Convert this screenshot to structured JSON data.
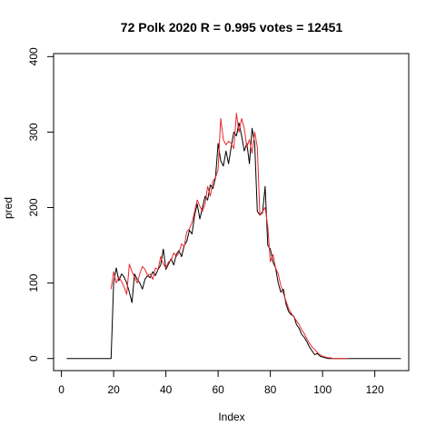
{
  "chart_data": {
    "type": "line",
    "title": "72 Polk 2020 R = 0.995 votes = 12451",
    "xlabel": "Index",
    "ylabel": "pred",
    "xlim": [
      -3,
      133
    ],
    "ylim": [
      -16,
      404
    ],
    "xticks": [
      0,
      20,
      40,
      60,
      80,
      100,
      120
    ],
    "yticks": [
      0,
      100,
      200,
      300,
      400
    ],
    "grid": false,
    "legend": "none",
    "series": [
      {
        "color": "#000000",
        "x": [
          2,
          3,
          4,
          5,
          6,
          7,
          8,
          9,
          10,
          11,
          12,
          13,
          14,
          15,
          16,
          17,
          18,
          19,
          20,
          21,
          22,
          23,
          24,
          25,
          26,
          27,
          28,
          29,
          30,
          31,
          32,
          33,
          34,
          35,
          36,
          37,
          38,
          39,
          40,
          41,
          42,
          43,
          44,
          45,
          46,
          47,
          48,
          49,
          50,
          51,
          52,
          53,
          54,
          55,
          56,
          57,
          58,
          59,
          60,
          61,
          62,
          63,
          64,
          65,
          66,
          67,
          68,
          69,
          70,
          71,
          72,
          73,
          74,
          75,
          76,
          77,
          78,
          79,
          80,
          81,
          82,
          83,
          84,
          85,
          86,
          87,
          88,
          89,
          90,
          91,
          92,
          93,
          94,
          95,
          96,
          97,
          98,
          99,
          100,
          101,
          102,
          103,
          104,
          105,
          106,
          107,
          108,
          109,
          110,
          111,
          112,
          113,
          114,
          115,
          116,
          117,
          118,
          119,
          120,
          121,
          122,
          123,
          124,
          125,
          126,
          127,
          128,
          129,
          130
        ],
        "values": [
          0,
          0,
          0,
          0,
          0,
          0,
          0,
          0,
          0,
          0,
          0,
          0,
          0,
          0,
          0,
          0,
          0,
          0,
          100,
          120,
          103,
          112,
          108,
          100,
          88,
          74,
          112,
          105,
          100,
          92,
          105,
          110,
          107,
          115,
          110,
          118,
          124,
          145,
          118,
          125,
          132,
          124,
          138,
          143,
          135,
          150,
          155,
          170,
          165,
          190,
          205,
          185,
          200,
          215,
          210,
          230,
          225,
          240,
          285,
          262,
          255,
          275,
          258,
          280,
          300,
          295,
          312,
          295,
          275,
          285,
          258,
          305,
          285,
          195,
          190,
          193,
          228,
          150,
          145,
          128,
          120,
          100,
          88,
          92,
          72,
          62,
          58,
          56,
          45,
          40,
          32,
          28,
          22,
          15,
          10,
          5,
          7,
          3,
          2,
          1,
          0,
          0,
          0,
          0,
          0,
          0,
          0,
          0,
          0,
          0,
          0,
          0,
          0,
          0,
          0,
          0,
          0,
          0,
          0,
          0,
          0,
          0,
          0,
          0,
          0,
          0,
          0,
          0,
          0
        ]
      },
      {
        "color": "#e8282b",
        "x": [
          19,
          20,
          21,
          22,
          23,
          24,
          25,
          26,
          27,
          28,
          29,
          30,
          31,
          32,
          33,
          34,
          35,
          36,
          37,
          38,
          39,
          40,
          41,
          42,
          43,
          44,
          45,
          46,
          47,
          48,
          49,
          50,
          51,
          52,
          53,
          54,
          55,
          56,
          57,
          58,
          59,
          60,
          61,
          62,
          63,
          64,
          65,
          66,
          67,
          68,
          69,
          70,
          71,
          72,
          73,
          74,
          75,
          76,
          77,
          78,
          79,
          80,
          81,
          82,
          83,
          84,
          85,
          86,
          87,
          88,
          89,
          90,
          91,
          92,
          93,
          94,
          95,
          96,
          97,
          98,
          99,
          100,
          101,
          102,
          103,
          104,
          105,
          106,
          107,
          108,
          109,
          110
        ],
        "values": [
          92,
          115,
          100,
          108,
          102,
          95,
          85,
          125,
          115,
          108,
          100,
          112,
          122,
          118,
          110,
          112,
          105,
          120,
          118,
          135,
          125,
          120,
          128,
          130,
          140,
          135,
          140,
          152,
          148,
          168,
          172,
          180,
          195,
          210,
          202,
          195,
          205,
          228,
          215,
          235,
          240,
          250,
          318,
          290,
          283,
          288,
          285,
          278,
          325,
          300,
          318,
          305,
          280,
          290,
          272,
          300,
          280,
          190,
          195,
          200,
          175,
          128,
          138,
          120,
          112,
          97,
          86,
          76,
          66,
          60,
          55,
          50,
          45,
          38,
          33,
          26,
          20,
          15,
          12,
          8,
          5,
          3,
          2,
          1,
          1,
          0,
          0,
          0,
          0,
          0,
          0,
          0
        ]
      }
    ]
  }
}
